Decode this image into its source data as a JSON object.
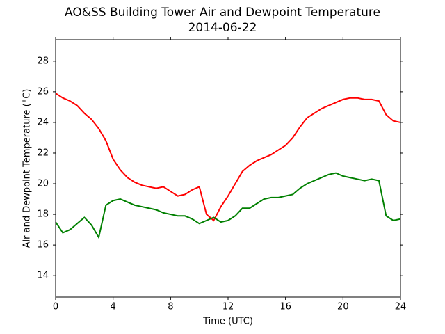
{
  "chart_data": {
    "type": "line",
    "title": "AO&SS Building Tower Air and Dewpoint Temperature",
    "subtitle": "2014-06-22",
    "x_label": "Time (UTC)",
    "y_label": "Air and Dewpoint Temperature (°C)",
    "x": [
      0,
      0.5,
      1,
      1.5,
      2,
      2.5,
      3,
      3.5,
      4,
      4.5,
      5,
      5.5,
      6,
      6.5,
      7,
      7.5,
      8,
      8.5,
      9,
      9.5,
      10,
      10.5,
      11,
      11.5,
      12,
      12.5,
      13,
      13.5,
      14,
      14.5,
      15,
      15.5,
      16,
      16.5,
      17,
      17.5,
      18,
      18.5,
      19,
      19.5,
      20,
      20.5,
      21,
      21.5,
      22,
      22.5,
      23,
      23.5,
      24
    ],
    "series": [
      {
        "color": "#ff0000",
        "values": [
          25.9,
          25.6,
          25.4,
          25.1,
          24.6,
          24.2,
          23.6,
          22.8,
          21.6,
          20.9,
          20.4,
          20.1,
          19.9,
          19.8,
          19.7,
          19.8,
          19.5,
          19.2,
          19.3,
          19.6,
          19.8,
          18.0,
          17.6,
          18.5,
          19.2,
          20.0,
          20.8,
          21.2,
          21.5,
          21.7,
          21.9,
          22.2,
          22.5,
          23.0,
          23.7,
          24.3,
          24.6,
          24.9,
          25.1,
          25.3,
          25.5,
          25.6,
          25.6,
          25.5,
          25.5,
          25.4,
          24.5,
          24.1,
          24.0
        ]
      },
      {
        "color": "#008000",
        "values": [
          17.5,
          16.8,
          17.0,
          17.4,
          17.8,
          17.3,
          16.5,
          18.6,
          18.9,
          19.0,
          18.8,
          18.6,
          18.5,
          18.4,
          18.3,
          18.1,
          18.0,
          17.9,
          17.9,
          17.7,
          17.4,
          17.6,
          17.8,
          17.5,
          17.6,
          17.9,
          18.4,
          18.4,
          18.7,
          19.0,
          19.1,
          19.1,
          19.2,
          19.3,
          19.7,
          20.0,
          20.2,
          20.4,
          20.6,
          20.7,
          20.5,
          20.4,
          20.3,
          20.2,
          20.3,
          20.2,
          17.9,
          17.6,
          17.7
        ]
      }
    ],
    "xlim": [
      0,
      24
    ],
    "xticks": [
      0,
      4,
      8,
      12,
      16,
      20,
      24
    ],
    "ylim": [
      12.6,
      29.4
    ],
    "yticks": [
      14,
      16,
      18,
      20,
      22,
      24,
      26,
      28
    ],
    "grid": false
  }
}
